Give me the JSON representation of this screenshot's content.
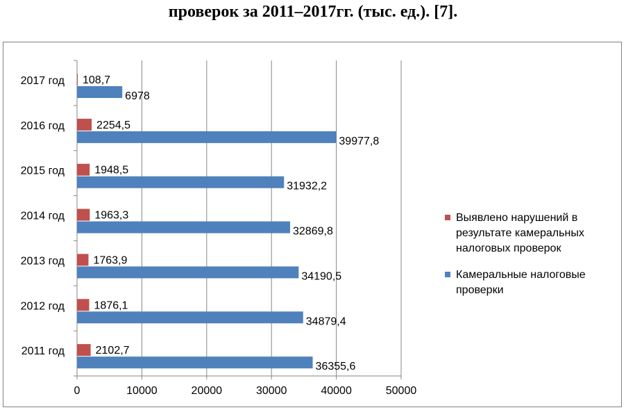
{
  "caption": "проверок за 2011–2017гг. (тыс. ед.). [7].",
  "chart_data": {
    "type": "bar",
    "orientation": "horizontal",
    "categories": [
      "2011 год",
      "2012 год",
      "2013 год",
      "2014 год",
      "2015 год",
      "2016 год",
      "2017 год"
    ],
    "series": [
      {
        "name": "Камеральные налоговые проверки",
        "color": "#4f81bd",
        "values": [
          36355.6,
          34879.4,
          34190.5,
          32869.8,
          31932.2,
          39977.8,
          6978
        ],
        "labels": [
          "36355,6",
          "34879,4",
          "34190,5",
          "32869,8",
          "31932,2",
          "39977,8",
          "6978"
        ]
      },
      {
        "name": "Выявлено нарушений в результате камеральных налоговых проверок",
        "color": "#c0504d",
        "values": [
          2102.7,
          1876.1,
          1763.9,
          1963.3,
          1948.5,
          2254.5,
          108.7
        ],
        "labels": [
          "2102,7",
          "1876,1",
          "1763,9",
          "1963,3",
          "1948,5",
          "2254,5",
          "108,7"
        ]
      }
    ],
    "xlim": [
      0,
      50000
    ],
    "xticks": [
      "0",
      "10000",
      "20000",
      "30000",
      "40000",
      "50000"
    ],
    "grid": true,
    "legend_position": "right"
  },
  "legend": [
    {
      "label": "Выявлено нарушений в результате камеральных налоговых проверок",
      "color": "#c0504d"
    },
    {
      "label": "Камеральные налоговые проверки",
      "color": "#4f81bd"
    }
  ]
}
